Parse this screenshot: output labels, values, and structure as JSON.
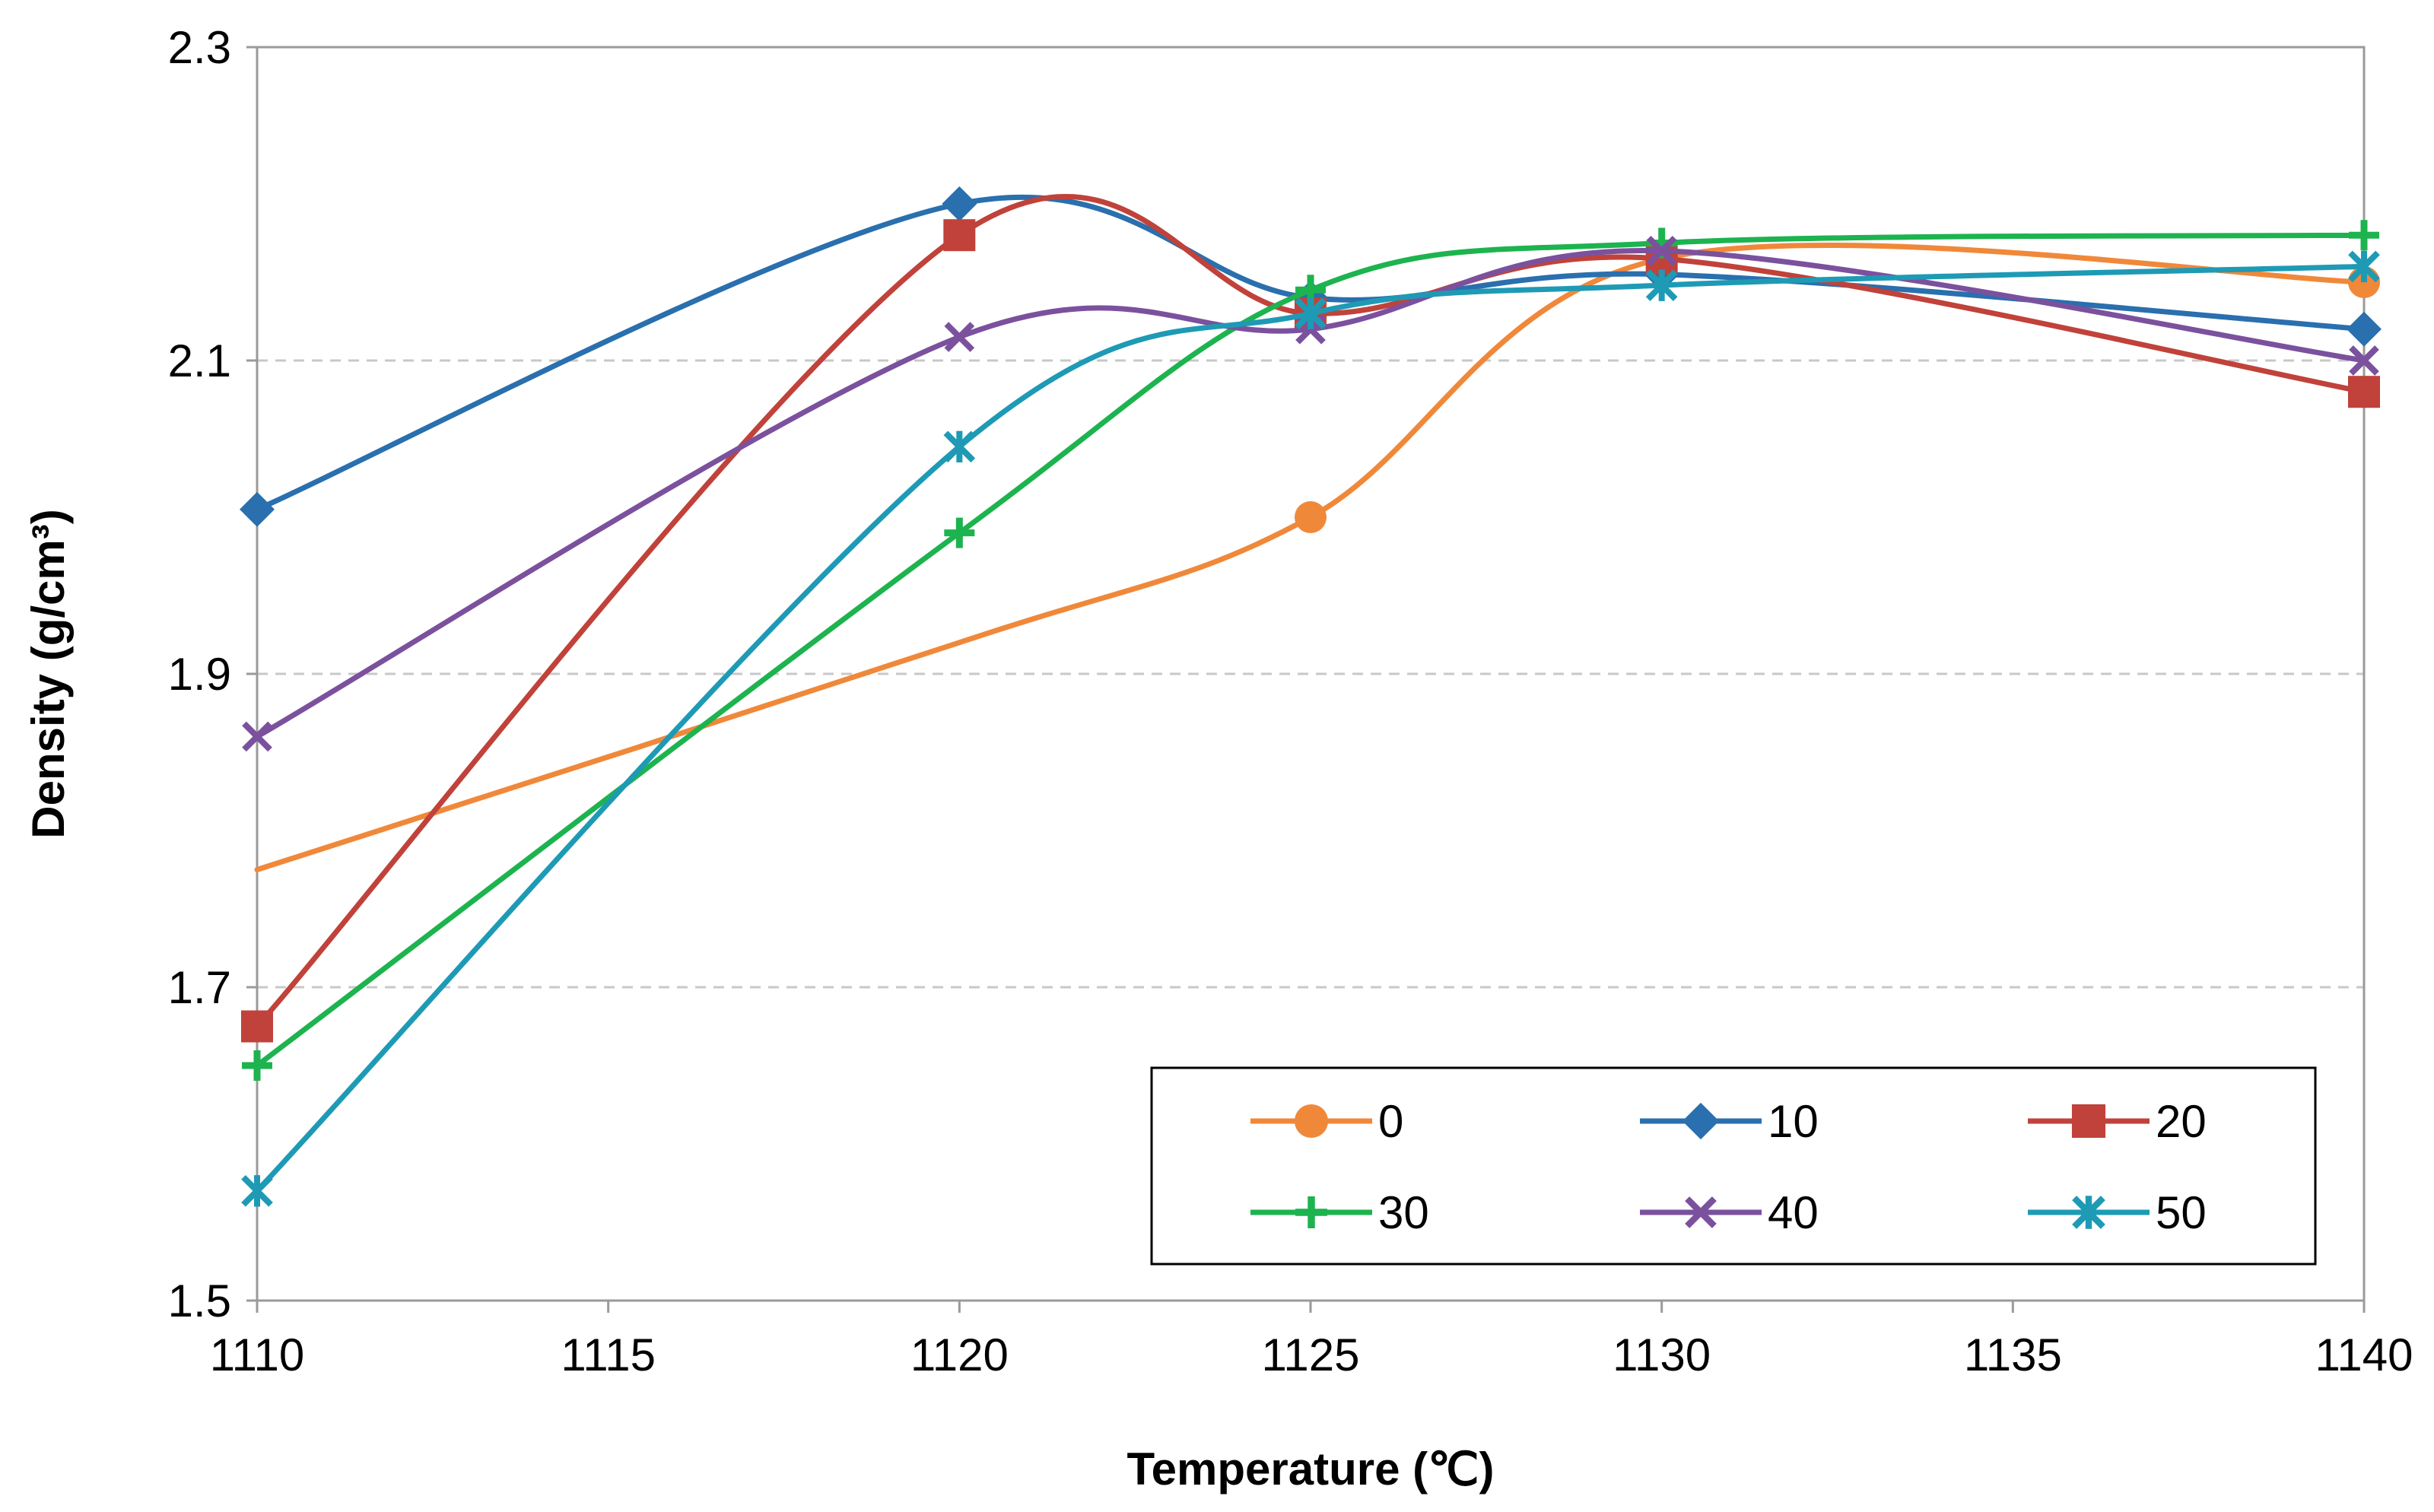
{
  "chart_data": {
    "type": "line",
    "smooth": true,
    "xlabel": "Temperature (℃)",
    "ylabel": "Density (g/cm³)",
    "xlim": [
      1110,
      1140
    ],
    "ylim": [
      1.5,
      2.3
    ],
    "x_ticks": [
      "1110",
      "1115",
      "1120",
      "1125",
      "1130",
      "1135",
      "1140"
    ],
    "y_ticks": [
      "1.5",
      "1.7",
      "1.9",
      "2.1",
      "2.3"
    ],
    "x_tick_values": [
      1110,
      1115,
      1120,
      1125,
      1130,
      1135,
      1140
    ],
    "y_tick_values": [
      1.5,
      1.7,
      1.9,
      2.1,
      2.3
    ],
    "y_gridlines": [
      1.7,
      1.9,
      2.1
    ],
    "grid": "horizontal dashed",
    "legend_position": "bottom-right",
    "x": [
      1110,
      1120,
      1125,
      1130,
      1140
    ],
    "series": [
      {
        "name": "0",
        "color": "#F0883A",
        "marker": "circle",
        "values": [
          1.775,
          1.92,
          2.0,
          2.165,
          2.15
        ]
      },
      {
        "name": "10",
        "color": "#2A6FAE",
        "marker": "diamond",
        "values": [
          2.005,
          2.2,
          2.14,
          2.155,
          2.12
        ]
      },
      {
        "name": "20",
        "color": "#C0423A",
        "marker": "square",
        "values": [
          1.675,
          2.18,
          2.13,
          2.165,
          2.08
        ]
      },
      {
        "name": "30",
        "color": "#1DB34F",
        "marker": "plus",
        "values": [
          1.65,
          1.99,
          2.145,
          2.175,
          2.18
        ]
      },
      {
        "name": "40",
        "color": "#7B519E",
        "marker": "x",
        "values": [
          1.86,
          2.115,
          2.12,
          2.17,
          2.1
        ]
      },
      {
        "name": "50",
        "color": "#1E9AB5",
        "marker": "star",
        "values": [
          1.57,
          2.045,
          2.13,
          2.148,
          2.16
        ]
      }
    ]
  }
}
